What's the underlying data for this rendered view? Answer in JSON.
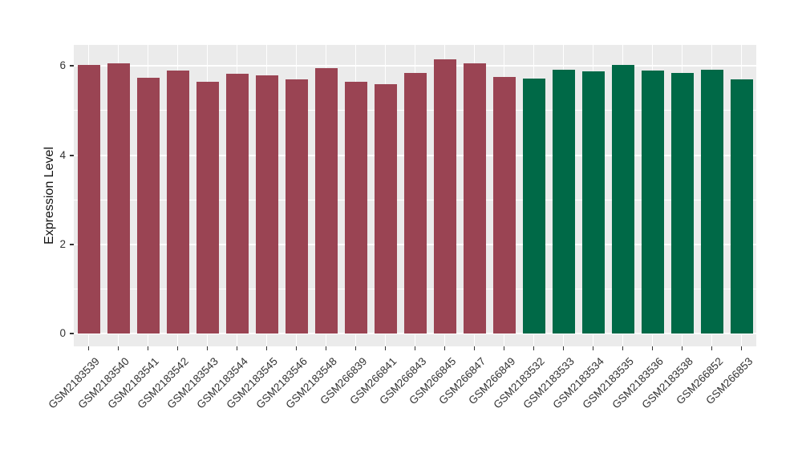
{
  "style": {
    "figure_background": "#FFFFFF",
    "panel_background": "#EBEBEB",
    "grid_color": "#FFFFFF",
    "axis_text_color": "#333333",
    "maroon": "#9A4453",
    "green": "#006947"
  },
  "chart_data": {
    "type": "bar",
    "title": "",
    "xlabel": "",
    "ylabel": "Expression Level",
    "yticks": [
      0,
      2,
      4,
      6
    ],
    "yticks_minor": [
      1,
      3,
      5
    ],
    "ylim": [
      -0.28,
      6.47
    ],
    "grid": true,
    "legend": false,
    "categories": [
      "GSM2183539",
      "GSM2183540",
      "GSM2183541",
      "GSM2183542",
      "GSM2183543",
      "GSM2183544",
      "GSM2183545",
      "GSM2183546",
      "GSM2183548",
      "GSM266839",
      "GSM266841",
      "GSM266843",
      "GSM266845",
      "GSM266847",
      "GSM266849",
      "GSM2183532",
      "GSM2183533",
      "GSM2183534",
      "GSM2183535",
      "GSM2183536",
      "GSM2183538",
      "GSM266852",
      "GSM266853"
    ],
    "values": [
      6.03,
      6.05,
      5.74,
      5.89,
      5.65,
      5.83,
      5.79,
      5.69,
      5.95,
      5.64,
      5.59,
      5.84,
      6.14,
      6.05,
      5.75,
      5.71,
      5.92,
      5.88,
      6.03,
      5.9,
      5.85,
      5.91,
      5.7
    ],
    "bar_colors": [
      "#9A4453",
      "#9A4453",
      "#9A4453",
      "#9A4453",
      "#9A4453",
      "#9A4453",
      "#9A4453",
      "#9A4453",
      "#9A4453",
      "#9A4453",
      "#9A4453",
      "#9A4453",
      "#9A4453",
      "#9A4453",
      "#9A4453",
      "#006947",
      "#006947",
      "#006947",
      "#006947",
      "#006947",
      "#006947",
      "#006947",
      "#006947"
    ]
  }
}
